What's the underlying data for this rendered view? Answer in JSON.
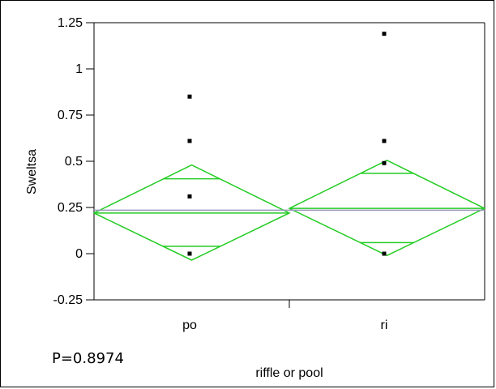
{
  "chart_data": {
    "type": "scatter",
    "subtype": "means-diamond-oneway",
    "xlabel": "riffle or pool",
    "ylabel": "Sweltsa",
    "categories": [
      "po",
      "ri"
    ],
    "ylim": [
      -0.25,
      1.25
    ],
    "yticks": [
      -0.25,
      0,
      0.25,
      0.5,
      0.75,
      1,
      1.25
    ],
    "ytick_labels": [
      "-0.25",
      "0",
      "0.25",
      "0.5",
      "0.75",
      "1",
      "1.25"
    ],
    "grand_mean": 0.235,
    "groups": [
      {
        "category": "po",
        "points": [
          0.85,
          0.61,
          0.31,
          0.0
        ],
        "mean": 0.22,
        "upper_ci": 0.48,
        "lower_ci": -0.035,
        "upper_overlap": 0.405,
        "lower_overlap": 0.04
      },
      {
        "category": "ri",
        "points": [
          1.19,
          0.61,
          0.49,
          0.0
        ],
        "mean": 0.245,
        "upper_ci": 0.505,
        "lower_ci": -0.01,
        "upper_overlap": 0.435,
        "lower_overlap": 0.06
      }
    ],
    "diamond_color": "#22cc22",
    "grand_mean_color": "#9999bb",
    "grid": false,
    "legend": "none",
    "annotation": "P=0.8974"
  }
}
